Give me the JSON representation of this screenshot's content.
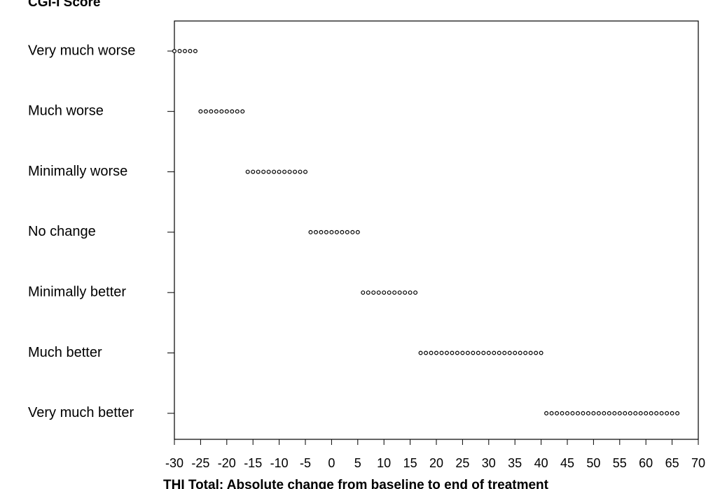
{
  "chart_data": {
    "type": "scatter",
    "title": "CGI-I Score",
    "x_label": "THI Total: Absolute change from baseline to end of treatment",
    "categories": [
      "Very much worse",
      "Much worse",
      "Minimally worse",
      "No change",
      "Minimally better",
      "Much better",
      "Very much better"
    ],
    "values": [
      [
        -30,
        -29,
        -28,
        -27,
        -26
      ],
      [
        -25,
        -24,
        -23,
        -22,
        -21,
        -20,
        -19,
        -18,
        -17
      ],
      [
        -16,
        -15,
        -14,
        -13,
        -12,
        -11,
        -10,
        -9,
        -8,
        -7,
        -6,
        -5
      ],
      [
        -4,
        -3,
        -2,
        -1,
        0,
        1,
        2,
        3,
        4,
        5
      ],
      [
        6,
        7,
        8,
        9,
        10,
        11,
        12,
        13,
        14,
        15,
        16
      ],
      [
        17,
        18,
        19,
        20,
        21,
        22,
        23,
        24,
        25,
        26,
        27,
        28,
        29,
        30,
        31,
        32,
        33,
        34,
        35,
        36,
        37,
        38,
        39,
        40
      ],
      [
        41,
        42,
        43,
        44,
        45,
        46,
        47,
        48,
        49,
        50,
        51,
        52,
        53,
        54,
        55,
        56,
        57,
        58,
        59,
        60,
        61,
        62,
        63,
        64,
        65,
        66
      ]
    ],
    "color": "#000000",
    "xlim": [
      -30,
      70
    ],
    "xticks": [
      -30,
      -25,
      -20,
      -15,
      -10,
      -5,
      0,
      5,
      10,
      15,
      20,
      25,
      30,
      35,
      40,
      45,
      50,
      55,
      60,
      65,
      70
    ]
  }
}
